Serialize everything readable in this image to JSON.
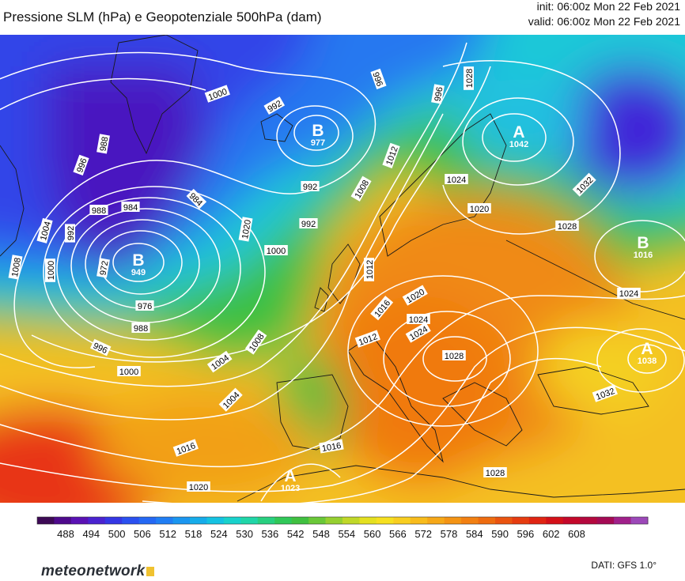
{
  "header": {
    "title": "Pressione SLM (hPa) e Geopotenziale 500hPa (dam)",
    "init": "init: 06:00z Mon 22 Feb 2021",
    "valid": "valid: 06:00z Mon 22 Feb 2021"
  },
  "colors": {
    "deep_low": "#4a0fa0",
    "low": "#2a5cf0",
    "mid_low": "#19c8e0",
    "mid": "#3cbf3a",
    "mid_high": "#f0e020",
    "high": "#f08a10",
    "very_high": "#e83010",
    "isobar": "#ffffff"
  },
  "isobar_labels": [
    "1000",
    "992",
    "984",
    "996",
    "988",
    "996",
    "992",
    "988",
    "1004",
    "992",
    "1000",
    "1008",
    "984",
    "972",
    "976",
    "988",
    "996",
    "1000",
    "992",
    "1000",
    "1004",
    "1008",
    "1004",
    "1012",
    "1016",
    "1020",
    "996",
    "1012",
    "1028",
    "1008",
    "1024",
    "1020",
    "1024",
    "1028",
    "1032",
    "1028",
    "1024",
    "1032",
    "1012",
    "1016",
    "1020",
    "1016",
    "1028",
    "1020",
    "1024"
  ],
  "pressure_centers": [
    {
      "type": "B",
      "value": "977"
    },
    {
      "type": "B",
      "value": "949"
    },
    {
      "type": "A",
      "value": "1042"
    },
    {
      "type": "B",
      "value": "1016"
    },
    {
      "type": "A",
      "value": "1038"
    },
    {
      "type": "A",
      "value": "1023"
    }
  ],
  "colorbar": {
    "ticks": [
      "488",
      "494",
      "500",
      "506",
      "512",
      "518",
      "524",
      "530",
      "536",
      "542",
      "548",
      "554",
      "560",
      "566",
      "572",
      "578",
      "584",
      "590",
      "596",
      "602",
      "608"
    ],
    "colors": [
      "#3d0a55",
      "#4e0a8c",
      "#5a12b4",
      "#4a22d0",
      "#3436e4",
      "#2a50f0",
      "#2468f4",
      "#207ef4",
      "#1a96f0",
      "#16acea",
      "#14c2e2",
      "#18d2cc",
      "#20d6a8",
      "#28d080",
      "#30c858",
      "#40c040",
      "#6ac838",
      "#96d030",
      "#c0d828",
      "#e4e020",
      "#f6e020",
      "#f8ce20",
      "#f8bc1c",
      "#f6a818",
      "#f49414",
      "#f28012",
      "#ee6c10",
      "#ea5410",
      "#e63c10",
      "#e02412",
      "#d41018",
      "#c4082a",
      "#b4083e",
      "#a40a54",
      "#a0208a",
      "#9c48b8"
    ]
  },
  "footer": {
    "brand": "meteonetwork",
    "source": "DATI: GFS 1.0°"
  }
}
